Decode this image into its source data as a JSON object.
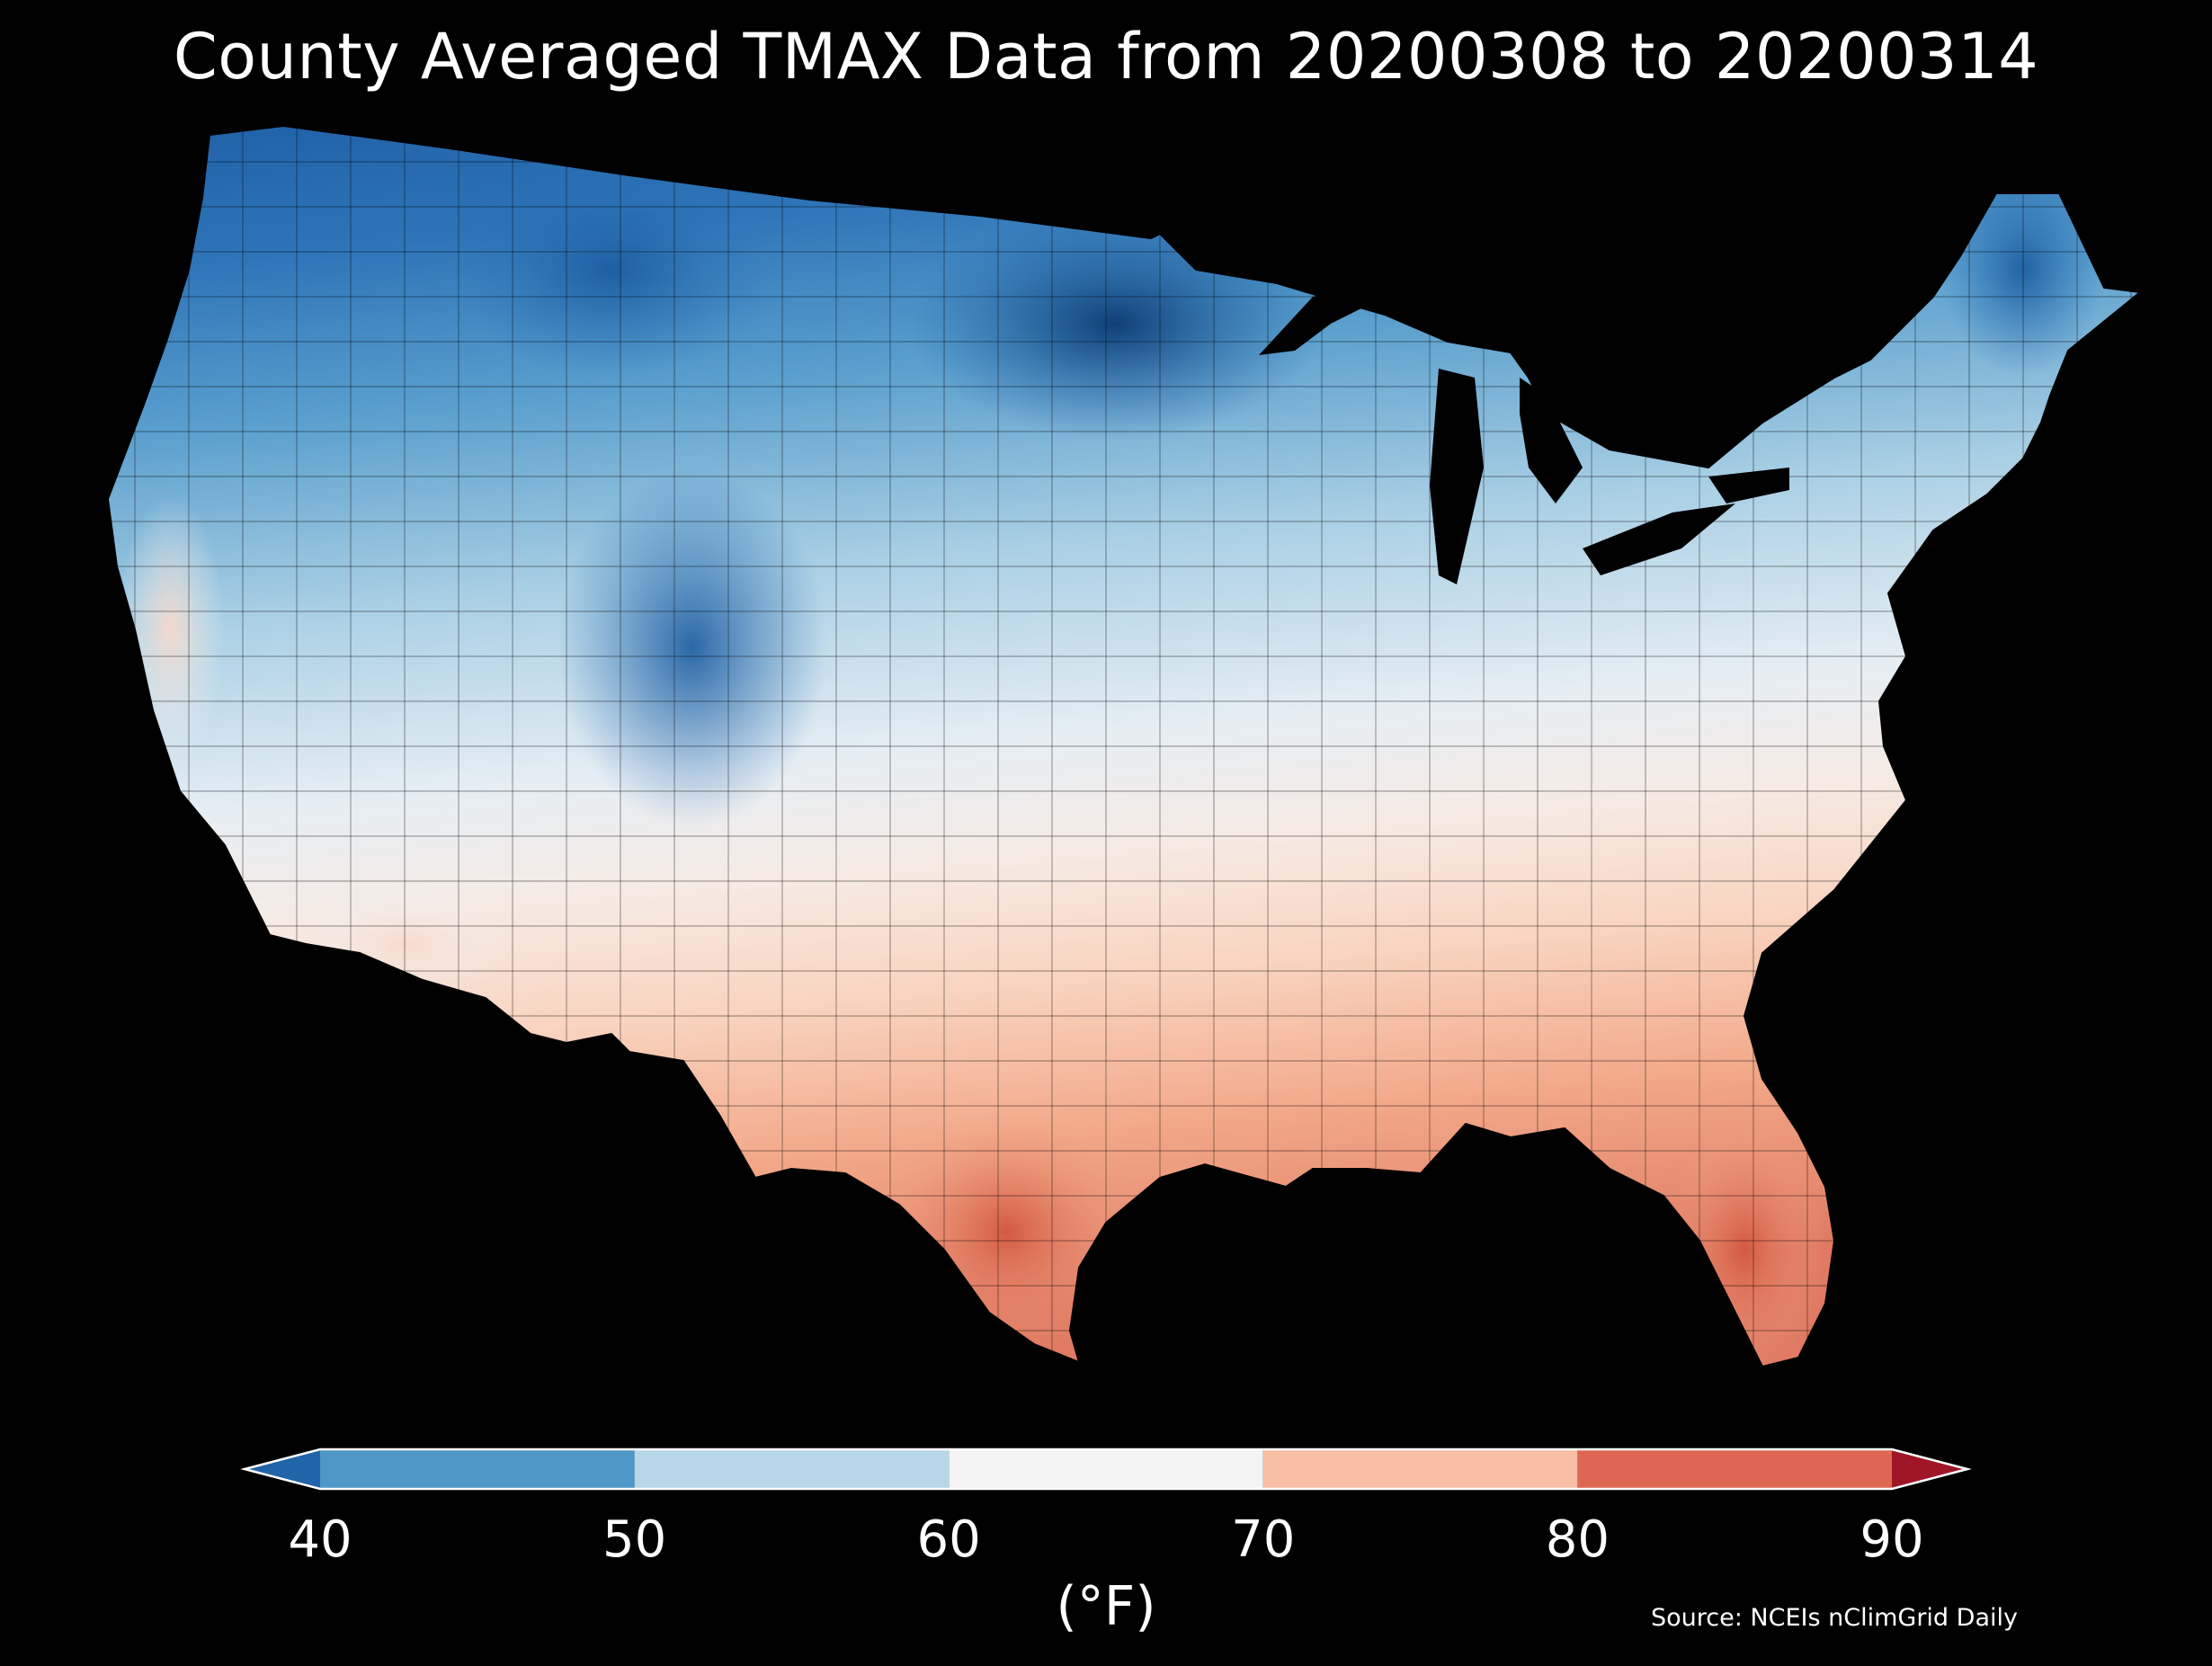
{
  "title": "County Averaged TMAX Data from 20200308 to 20200314",
  "colorbar": {
    "ticks": [
      "40",
      "50",
      "60",
      "70",
      "80",
      "90"
    ],
    "units": "(°F)",
    "min": 40,
    "max": 90,
    "extend": "both",
    "bins": [
      {
        "from": 40,
        "to": 50,
        "color": "#4e97c6"
      },
      {
        "from": 50,
        "to": 60,
        "color": "#b7d6e8"
      },
      {
        "from": 60,
        "to": 70,
        "color": "#f4f4f4"
      },
      {
        "from": 70,
        "to": 80,
        "color": "#f8bea5"
      },
      {
        "from": 80,
        "to": 90,
        "color": "#dd6752"
      }
    ],
    "under_color": "#2264a8",
    "over_color": "#a01528"
  },
  "source": "Source: NCEIs nClimGrid Daily",
  "colors": {
    "background": "#000000",
    "cold_extreme": "#0a3a6e",
    "warm_extreme": "#d2563f"
  }
}
